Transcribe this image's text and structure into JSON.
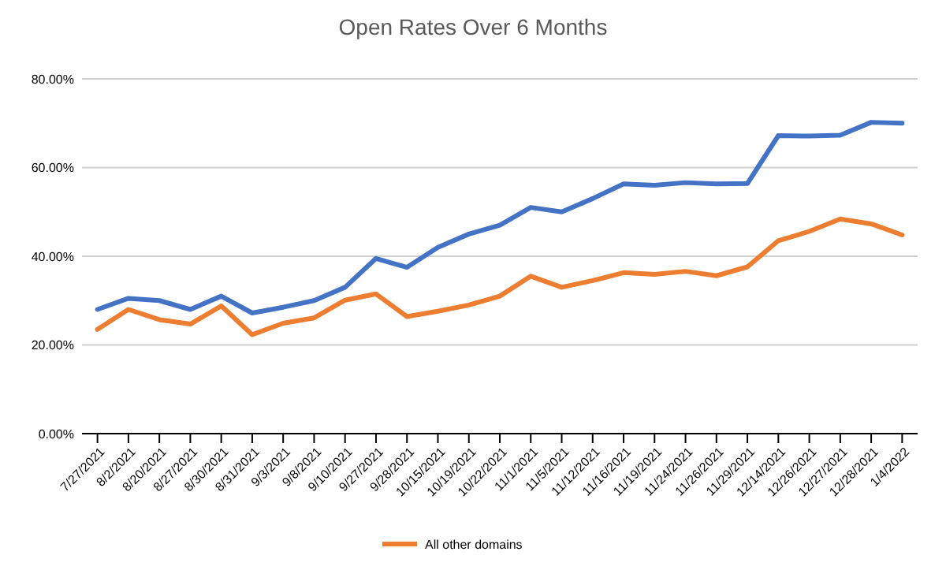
{
  "chart_data": {
    "type": "line",
    "title": "Open Rates Over 6 Months",
    "categories": [
      "7/27/2021",
      "8/2/2021",
      "8/20/2021",
      "8/27/2021",
      "8/30/2021",
      "8/31/2021",
      "9/3/2021",
      "9/8/2021",
      "9/10/2021",
      "9/27/2021",
      "9/28/2021",
      "10/15/2021",
      "10/19/2021",
      "10/22/2021",
      "11/1/2021",
      "11/5/2021",
      "11/12/2021",
      "11/16/2021",
      "11/19/2021",
      "11/24/2021",
      "11/26/2021",
      "11/29/2021",
      "12/14/2021",
      "12/26/2021",
      "12/27/2021",
      "12/28/2021",
      "1/4/2022"
    ],
    "series": [
      {
        "color": "#4472c4",
        "values": [
          28,
          30.5,
          30,
          28,
          31,
          27.2,
          28.5,
          30,
          33,
          39.5,
          37.5,
          42,
          45,
          47,
          51,
          50,
          53,
          56.3,
          56,
          56.6,
          56.3,
          56.4,
          67.2,
          67.1,
          67.3,
          70.2,
          70
        ]
      },
      {
        "name": "All other domains",
        "color": "#ed7d31",
        "values": [
          23.5,
          28,
          25.7,
          24.7,
          28.8,
          22.3,
          24.9,
          26.1,
          30.1,
          31.5,
          26.4,
          27.6,
          29,
          31,
          35.5,
          33,
          34.5,
          36.3,
          35.9,
          36.6,
          35.6,
          37.6,
          43.5,
          45.6,
          48.4,
          47.3,
          44.8
        ]
      }
    ],
    "ylim": [
      0,
      80
    ],
    "yticks": [
      {
        "value": 0,
        "label": "0.00%"
      },
      {
        "value": 20,
        "label": "20.00%"
      },
      {
        "value": 40,
        "label": "40.00%"
      },
      {
        "value": 60,
        "label": "60.00%"
      },
      {
        "value": 80,
        "label": "80.00%"
      }
    ],
    "grid": "y",
    "legend": "bottom",
    "marker": "none",
    "line_style": "solid"
  }
}
